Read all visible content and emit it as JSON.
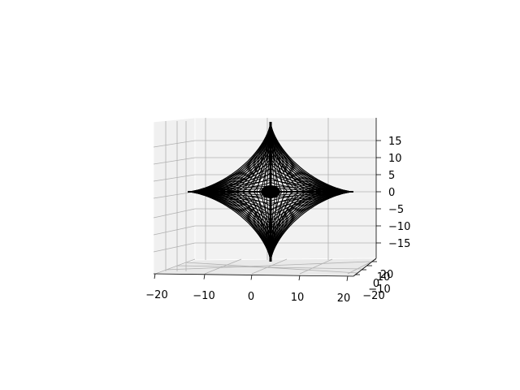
{
  "chart_data": {
    "type": "wireframe",
    "surface": "astroid-like star (hyperbolic/cusp wireframe)",
    "x_ticks": [
      "−20",
      "−10",
      "0",
      "10",
      "20"
    ],
    "y_ticks": [
      "−20",
      "−10",
      "0",
      "10",
      "20"
    ],
    "z_ticks": [
      "−15",
      "−10",
      "−5",
      "0",
      "5",
      "10",
      "15"
    ],
    "z_values": [
      -15,
      -10,
      -5,
      0,
      5,
      10,
      15
    ],
    "x_values": [
      -20,
      -10,
      0,
      10,
      20
    ],
    "xlim": [
      -20,
      20
    ],
    "ylim": [
      -20,
      20
    ],
    "zlim": [
      -18,
      18
    ],
    "grid": true,
    "pane_color": "#f2f2f2",
    "grid_color": "#b0b0b0",
    "line_color": "#000000"
  }
}
